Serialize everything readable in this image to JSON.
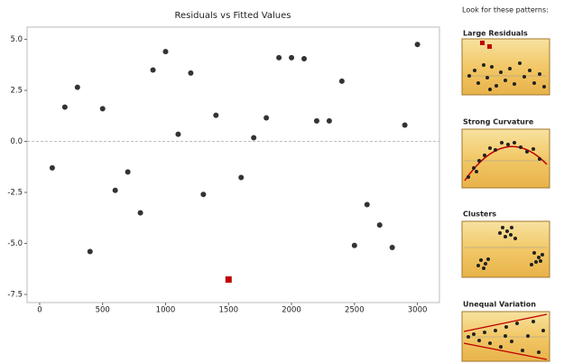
{
  "chart_data": {
    "type": "scatter",
    "title": "Residuals vs Fitted Values",
    "x": [
      100,
      200,
      300,
      400,
      500,
      600,
      700,
      800,
      900,
      1000,
      1100,
      1200,
      1300,
      1400,
      1500,
      1600,
      1700,
      1800,
      1900,
      2000,
      2100,
      2200,
      2300,
      2400,
      2500,
      2600,
      2700,
      2800,
      2900,
      3000
    ],
    "values": [
      -1.3,
      1.68,
      2.65,
      -5.4,
      1.6,
      -2.4,
      -1.5,
      -3.5,
      3.5,
      4.4,
      0.35,
      3.35,
      -2.6,
      1.28,
      -6.77,
      -1.77,
      0.18,
      1.15,
      4.1,
      4.1,
      4.05,
      1.0,
      1.0,
      2.95,
      -5.1,
      -3.1,
      -4.1,
      -5.2,
      0.8,
      4.75
    ],
    "color": "#333333",
    "highlight": {
      "index": 14,
      "color": "#c00000"
    },
    "reference_line": 0,
    "xlim": [
      -100,
      3175
    ],
    "xticks": [
      0,
      500,
      1000,
      1500,
      2000,
      2500,
      3000
    ],
    "ylim": [
      -7.9,
      5.6
    ],
    "yticks": [
      {
        "value": 5,
        "label": "5.0"
      },
      2.5,
      {
        "value": 0,
        "label": "0.0"
      },
      -2.5,
      {
        "value": -5,
        "label": "-5.0"
      },
      -7.5
    ]
  },
  "sidebar": {
    "heading": "Look for these patterns:",
    "patterns": [
      "Large Residuals",
      "Strong Curvature",
      "Clusters",
      "Unequal Variation"
    ]
  }
}
